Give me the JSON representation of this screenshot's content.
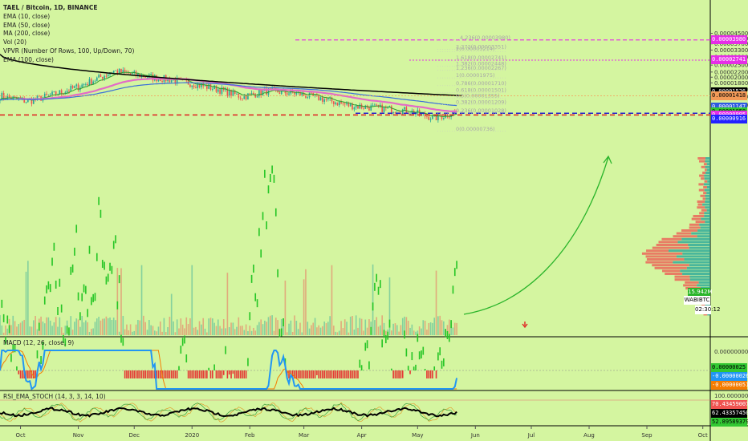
{
  "header": {
    "symbol_line": "TAEL / Bitcoin, 1D, BINANCE",
    "indicators": [
      "EMA (10, close)",
      "EMA (50, close)",
      "MA (200, close)",
      "Vol (20)",
      "VPVR (Number Of Rows, 100, Up/Down, 70)",
      "EMA (100, close)"
    ]
  },
  "macd_label": "MACD (12, 26, close, 9)",
  "rsi_label": "RSI_EMA_STOCH (14, 3, 3, 14, 10)",
  "watermark": "WABIBTC",
  "countdown": "02:30:12",
  "volume_badge": "15.942M",
  "colors": {
    "background": "#d4f5a0",
    "up": "#26a69a",
    "down": "#ef5350",
    "ema10": "#2e9e2e",
    "ema50": "#e36bc7",
    "ma200": "#000000",
    "ema100": "#3a6fd8",
    "fib_target": "#e62ee6"
  },
  "price_axis": {
    "ticks": [
      "0.00004500",
      "0.00004100",
      "0.00003700",
      "0.00003300",
      "0.00002900",
      "0.00002500",
      "0.00002200",
      "0.00002000",
      "0.00001800",
      "0.00001600",
      "0.00001400",
      "0.00001200"
    ],
    "tags": [
      {
        "text": "0.00003980",
        "bg": "#e62ee6",
        "fg": "#ffffff"
      },
      {
        "text": "0.00002741",
        "bg": "#e62ee6",
        "fg": "#ffffff"
      },
      {
        "text": "0.00001526",
        "bg": "#000000",
        "fg": "#ffffff"
      },
      {
        "text": "0.00001418",
        "bg": "#f39a58",
        "fg": "#000000"
      },
      {
        "text": "0.00001147",
        "bg": "#2f5be0",
        "fg": "#ffffff"
      },
      {
        "text": "0.00001058",
        "bg": "#32c832",
        "fg": "#000000"
      },
      {
        "text": "0.00000995",
        "bg": "#e62ee6",
        "fg": "#ffffff"
      },
      {
        "text": "0.00000916",
        "bg": "#2222ff",
        "fg": "#ffffff"
      }
    ]
  },
  "macd_axis": {
    "ticks": [
      "0.00000000"
    ],
    "tags": [
      {
        "text": "0.00000025",
        "bg": "#32c832",
        "fg": "#000000"
      },
      {
        "text": "-0.00000026",
        "bg": "#2196f3",
        "fg": "#ffffff"
      },
      {
        "text": "-0.00000051",
        "bg": "#f57c00",
        "fg": "#ffffff"
      }
    ]
  },
  "rsi_axis": {
    "ticks": [
      "100.00000000"
    ],
    "tags": [
      {
        "text": "70.43459007",
        "bg": "#ef5350",
        "fg": "#ffffff"
      },
      {
        "text": "62.43357450",
        "bg": "#000000",
        "fg": "#ffffff"
      },
      {
        "text": "52.89589379",
        "bg": "#32c832",
        "fg": "#000000"
      }
    ]
  },
  "time_axis": [
    "Oct",
    "Nov",
    "Dec",
    "2020",
    "Feb",
    "Mar",
    "Apr",
    "May",
    "Jun",
    "Jul",
    "Aug",
    "Sep",
    "Oct"
  ],
  "fib_levels": [
    {
      "label": "4.236(0.00003980)",
      "price": 3.98e-05,
      "color": "#f39a58"
    },
    {
      "label": "2.272(0.00003351)",
      "price": 3.351e-05
    },
    {
      "label": "2(0.00003214)",
      "price": 3.214e-05
    },
    {
      "label": "1.618(0.00002741)",
      "price": 2.741e-05,
      "color": "#f39a58"
    },
    {
      "label": "1.382(0.00002448)",
      "price": 2.448e-05
    },
    {
      "label": "1.236(0.00002267)",
      "price": 2.267e-05
    },
    {
      "label": "1(0.00001975)",
      "price": 1.975e-05
    },
    {
      "label": "0.786(0.00001710)",
      "price": 1.71e-05,
      "color": "#f39a58"
    },
    {
      "label": "0.618(0.00001501)",
      "price": 1.501e-05
    },
    {
      "label": "0.5(0.00001355)",
      "price": 1.355e-05
    },
    {
      "label": "0.382(0.00001209)",
      "price": 1.209e-05
    },
    {
      "label": "0.236(0.00001028)",
      "price": 1.028e-05
    },
    {
      "label": "0(0.00000736)",
      "price": 7.36e-06
    }
  ],
  "chart_data": {
    "type": "candlestick",
    "pair": "TAEL / Bitcoin",
    "timeframe": "1D",
    "exchange": "BINANCE",
    "x_range": [
      "2019-09-20",
      "2020-10-05"
    ],
    "price_close_approx": [
      {
        "date": "2019-09-20",
        "close": 1.42e-05
      },
      {
        "date": "2019-10-05",
        "close": 1.28e-05
      },
      {
        "date": "2019-10-20",
        "close": 1.47e-05
      },
      {
        "date": "2019-11-01",
        "close": 1.68e-05
      },
      {
        "date": "2019-11-10",
        "close": 1.91e-05
      },
      {
        "date": "2019-11-20",
        "close": 2.25e-05
      },
      {
        "date": "2019-12-01",
        "close": 2.1e-05
      },
      {
        "date": "2019-12-10",
        "close": 2e-05
      },
      {
        "date": "2019-12-20",
        "close": 1.92e-05
      },
      {
        "date": "2020-01-01",
        "close": 1.78e-05
      },
      {
        "date": "2020-01-15",
        "close": 1.6e-05
      },
      {
        "date": "2020-01-28",
        "close": 1.39e-05
      },
      {
        "date": "2020-02-10",
        "close": 1.55e-05
      },
      {
        "date": "2020-02-25",
        "close": 1.49e-05
      },
      {
        "date": "2020-03-10",
        "close": 1.35e-05
      },
      {
        "date": "2020-03-25",
        "close": 1.19e-05
      },
      {
        "date": "2020-04-10",
        "close": 1.13e-05
      },
      {
        "date": "2020-04-25",
        "close": 1.08e-05
      },
      {
        "date": "2020-05-10",
        "close": 9.4e-06
      },
      {
        "date": "2020-05-22",
        "close": 1.06e-05
      }
    ],
    "horizontal_levels": {
      "fib_target": 3.98e-05,
      "fib_1618": 2.741e-05,
      "support_blue_dashed": 1.028e-05,
      "support_red_dashed": 9.95e-06
    },
    "projection": "green curved arrow from late May 2020 up toward 0.00002741 in mid August 2020"
  }
}
